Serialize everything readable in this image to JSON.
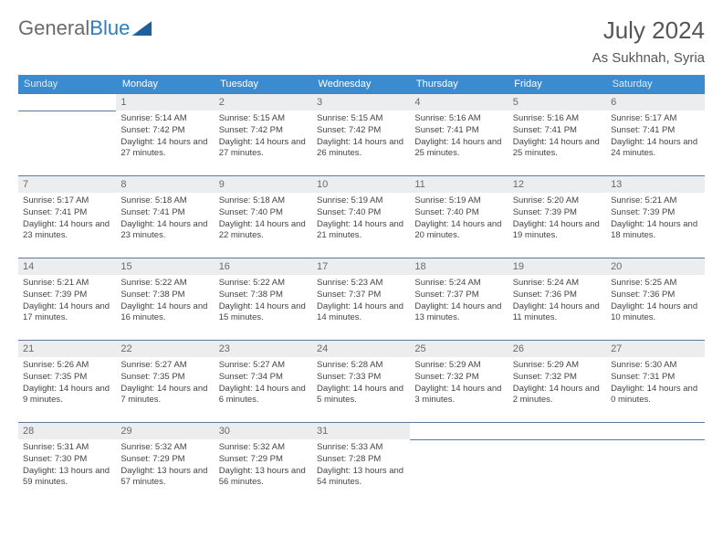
{
  "brand": {
    "part1": "General",
    "part2": "Blue"
  },
  "title": "July 2024",
  "location": "As Sukhnah, Syria",
  "weekdays": [
    "Sunday",
    "Monday",
    "Tuesday",
    "Wednesday",
    "Thursday",
    "Friday",
    "Saturday"
  ],
  "colors": {
    "header_bg": "#3b8bd0",
    "header_text": "#ffffff",
    "daynum_bg": "#ecedee",
    "rule": "#5f7a94",
    "brand_gray": "#6b6b6b",
    "brand_blue": "#2b7dc2"
  },
  "weeks": [
    [
      {
        "n": "",
        "sr": "",
        "ss": "",
        "dl": ""
      },
      {
        "n": "1",
        "sr": "5:14 AM",
        "ss": "7:42 PM",
        "dl": "14 hours and 27 minutes."
      },
      {
        "n": "2",
        "sr": "5:15 AM",
        "ss": "7:42 PM",
        "dl": "14 hours and 27 minutes."
      },
      {
        "n": "3",
        "sr": "5:15 AM",
        "ss": "7:42 PM",
        "dl": "14 hours and 26 minutes."
      },
      {
        "n": "4",
        "sr": "5:16 AM",
        "ss": "7:41 PM",
        "dl": "14 hours and 25 minutes."
      },
      {
        "n": "5",
        "sr": "5:16 AM",
        "ss": "7:41 PM",
        "dl": "14 hours and 25 minutes."
      },
      {
        "n": "6",
        "sr": "5:17 AM",
        "ss": "7:41 PM",
        "dl": "14 hours and 24 minutes."
      }
    ],
    [
      {
        "n": "7",
        "sr": "5:17 AM",
        "ss": "7:41 PM",
        "dl": "14 hours and 23 minutes."
      },
      {
        "n": "8",
        "sr": "5:18 AM",
        "ss": "7:41 PM",
        "dl": "14 hours and 23 minutes."
      },
      {
        "n": "9",
        "sr": "5:18 AM",
        "ss": "7:40 PM",
        "dl": "14 hours and 22 minutes."
      },
      {
        "n": "10",
        "sr": "5:19 AM",
        "ss": "7:40 PM",
        "dl": "14 hours and 21 minutes."
      },
      {
        "n": "11",
        "sr": "5:19 AM",
        "ss": "7:40 PM",
        "dl": "14 hours and 20 minutes."
      },
      {
        "n": "12",
        "sr": "5:20 AM",
        "ss": "7:39 PM",
        "dl": "14 hours and 19 minutes."
      },
      {
        "n": "13",
        "sr": "5:21 AM",
        "ss": "7:39 PM",
        "dl": "14 hours and 18 minutes."
      }
    ],
    [
      {
        "n": "14",
        "sr": "5:21 AM",
        "ss": "7:39 PM",
        "dl": "14 hours and 17 minutes."
      },
      {
        "n": "15",
        "sr": "5:22 AM",
        "ss": "7:38 PM",
        "dl": "14 hours and 16 minutes."
      },
      {
        "n": "16",
        "sr": "5:22 AM",
        "ss": "7:38 PM",
        "dl": "14 hours and 15 minutes."
      },
      {
        "n": "17",
        "sr": "5:23 AM",
        "ss": "7:37 PM",
        "dl": "14 hours and 14 minutes."
      },
      {
        "n": "18",
        "sr": "5:24 AM",
        "ss": "7:37 PM",
        "dl": "14 hours and 13 minutes."
      },
      {
        "n": "19",
        "sr": "5:24 AM",
        "ss": "7:36 PM",
        "dl": "14 hours and 11 minutes."
      },
      {
        "n": "20",
        "sr": "5:25 AM",
        "ss": "7:36 PM",
        "dl": "14 hours and 10 minutes."
      }
    ],
    [
      {
        "n": "21",
        "sr": "5:26 AM",
        "ss": "7:35 PM",
        "dl": "14 hours and 9 minutes."
      },
      {
        "n": "22",
        "sr": "5:27 AM",
        "ss": "7:35 PM",
        "dl": "14 hours and 7 minutes."
      },
      {
        "n": "23",
        "sr": "5:27 AM",
        "ss": "7:34 PM",
        "dl": "14 hours and 6 minutes."
      },
      {
        "n": "24",
        "sr": "5:28 AM",
        "ss": "7:33 PM",
        "dl": "14 hours and 5 minutes."
      },
      {
        "n": "25",
        "sr": "5:29 AM",
        "ss": "7:32 PM",
        "dl": "14 hours and 3 minutes."
      },
      {
        "n": "26",
        "sr": "5:29 AM",
        "ss": "7:32 PM",
        "dl": "14 hours and 2 minutes."
      },
      {
        "n": "27",
        "sr": "5:30 AM",
        "ss": "7:31 PM",
        "dl": "14 hours and 0 minutes."
      }
    ],
    [
      {
        "n": "28",
        "sr": "5:31 AM",
        "ss": "7:30 PM",
        "dl": "13 hours and 59 minutes."
      },
      {
        "n": "29",
        "sr": "5:32 AM",
        "ss": "7:29 PM",
        "dl": "13 hours and 57 minutes."
      },
      {
        "n": "30",
        "sr": "5:32 AM",
        "ss": "7:29 PM",
        "dl": "13 hours and 56 minutes."
      },
      {
        "n": "31",
        "sr": "5:33 AM",
        "ss": "7:28 PM",
        "dl": "13 hours and 54 minutes."
      },
      {
        "n": "",
        "sr": "",
        "ss": "",
        "dl": ""
      },
      {
        "n": "",
        "sr": "",
        "ss": "",
        "dl": ""
      },
      {
        "n": "",
        "sr": "",
        "ss": "",
        "dl": ""
      }
    ]
  ],
  "labels": {
    "sunrise": "Sunrise: ",
    "sunset": "Sunset: ",
    "daylight": "Daylight: "
  }
}
